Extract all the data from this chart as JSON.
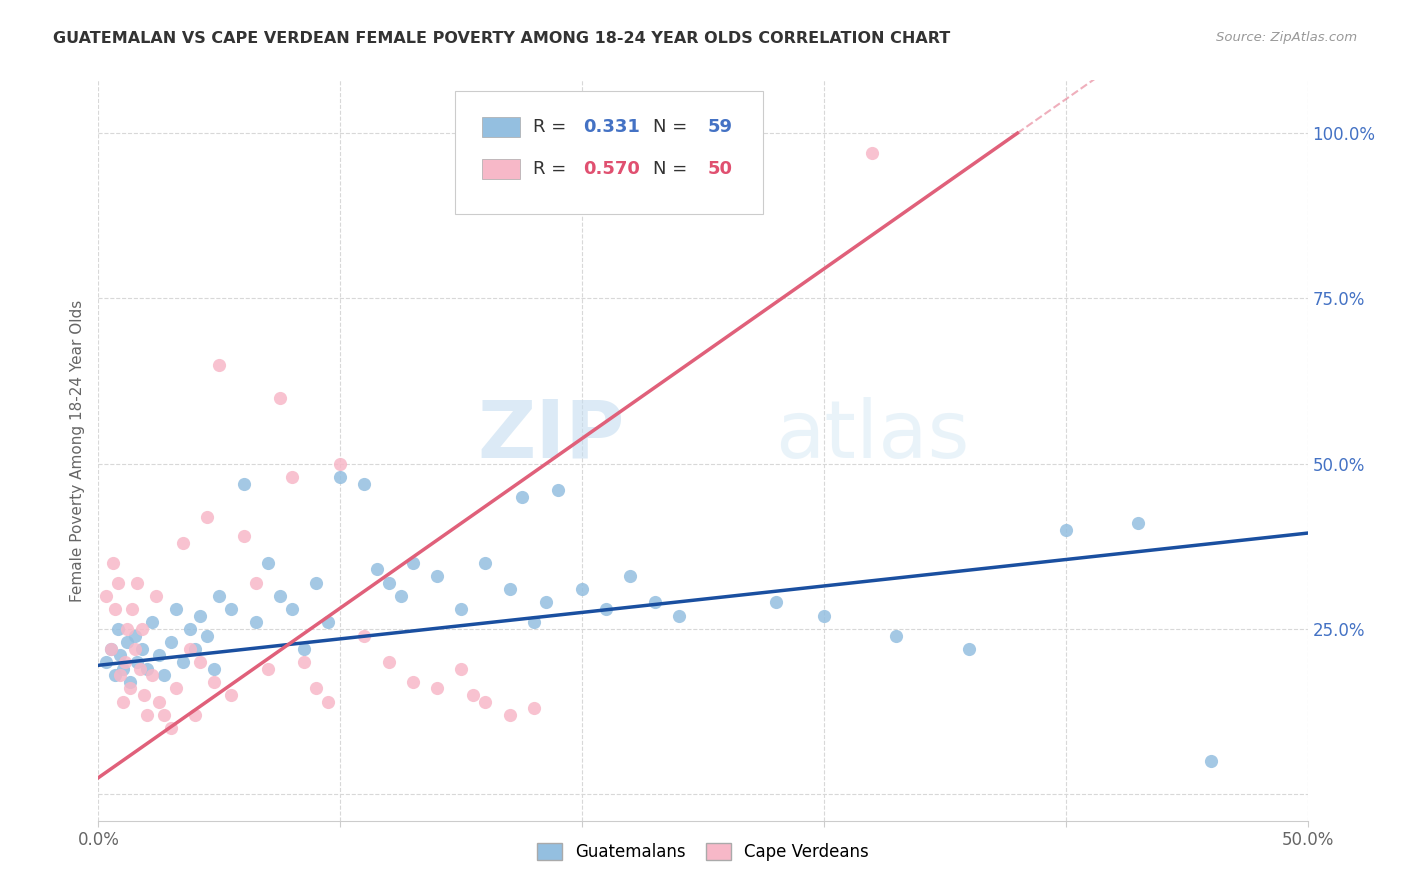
{
  "title": "GUATEMALAN VS CAPE VERDEAN FEMALE POVERTY AMONG 18-24 YEAR OLDS CORRELATION CHART",
  "source": "Source: ZipAtlas.com",
  "ylabel": "Female Poverty Among 18-24 Year Olds",
  "xlim": [
    0.0,
    0.5
  ],
  "ylim": [
    -0.04,
    1.08
  ],
  "xticks": [
    0.0,
    0.1,
    0.2,
    0.3,
    0.4,
    0.5
  ],
  "xticklabels": [
    "0.0%",
    "",
    "",
    "",
    "",
    "50.0%"
  ],
  "yticks_right": [
    0.0,
    0.25,
    0.5,
    0.75,
    1.0
  ],
  "yticklabels_right": [
    "",
    "25.0%",
    "50.0%",
    "75.0%",
    "100.0%"
  ],
  "guatemalan_color": "#94bfe0",
  "cape_verdean_color": "#f7b8c8",
  "guatemalan_line_color": "#1a4fa0",
  "cape_verdean_line_color": "#e0607a",
  "watermark_zip": "ZIP",
  "watermark_atlas": "atlas",
  "background_color": "#ffffff",
  "grid_color": "#d8d8d8",
  "guatemalan_x": [
    0.003,
    0.005,
    0.007,
    0.008,
    0.009,
    0.01,
    0.012,
    0.013,
    0.015,
    0.016,
    0.018,
    0.02,
    0.022,
    0.025,
    0.027,
    0.03,
    0.032,
    0.035,
    0.038,
    0.04,
    0.042,
    0.045,
    0.048,
    0.05,
    0.055,
    0.06,
    0.065,
    0.07,
    0.075,
    0.08,
    0.085,
    0.09,
    0.095,
    0.1,
    0.11,
    0.115,
    0.12,
    0.125,
    0.13,
    0.14,
    0.15,
    0.16,
    0.17,
    0.175,
    0.18,
    0.185,
    0.19,
    0.2,
    0.21,
    0.22,
    0.23,
    0.24,
    0.28,
    0.3,
    0.33,
    0.36,
    0.4,
    0.43,
    0.46
  ],
  "guatemalan_y": [
    0.2,
    0.22,
    0.18,
    0.25,
    0.21,
    0.19,
    0.23,
    0.17,
    0.24,
    0.2,
    0.22,
    0.19,
    0.26,
    0.21,
    0.18,
    0.23,
    0.28,
    0.2,
    0.25,
    0.22,
    0.27,
    0.24,
    0.19,
    0.3,
    0.28,
    0.47,
    0.26,
    0.35,
    0.3,
    0.28,
    0.22,
    0.32,
    0.26,
    0.48,
    0.47,
    0.34,
    0.32,
    0.3,
    0.35,
    0.33,
    0.28,
    0.35,
    0.31,
    0.45,
    0.26,
    0.29,
    0.46,
    0.31,
    0.28,
    0.33,
    0.29,
    0.27,
    0.29,
    0.27,
    0.24,
    0.22,
    0.4,
    0.41,
    0.05
  ],
  "cape_verdean_x": [
    0.003,
    0.005,
    0.006,
    0.007,
    0.008,
    0.009,
    0.01,
    0.011,
    0.012,
    0.013,
    0.014,
    0.015,
    0.016,
    0.017,
    0.018,
    0.019,
    0.02,
    0.022,
    0.024,
    0.025,
    0.027,
    0.03,
    0.032,
    0.035,
    0.038,
    0.04,
    0.042,
    0.045,
    0.048,
    0.05,
    0.055,
    0.06,
    0.065,
    0.07,
    0.075,
    0.08,
    0.085,
    0.09,
    0.095,
    0.1,
    0.11,
    0.12,
    0.13,
    0.14,
    0.15,
    0.155,
    0.16,
    0.17,
    0.18,
    0.32
  ],
  "cape_verdean_y": [
    0.3,
    0.22,
    0.35,
    0.28,
    0.32,
    0.18,
    0.14,
    0.2,
    0.25,
    0.16,
    0.28,
    0.22,
    0.32,
    0.19,
    0.25,
    0.15,
    0.12,
    0.18,
    0.3,
    0.14,
    0.12,
    0.1,
    0.16,
    0.38,
    0.22,
    0.12,
    0.2,
    0.42,
    0.17,
    0.65,
    0.15,
    0.39,
    0.32,
    0.19,
    0.6,
    0.48,
    0.2,
    0.16,
    0.14,
    0.5,
    0.24,
    0.2,
    0.17,
    0.16,
    0.19,
    0.15,
    0.14,
    0.12,
    0.13,
    0.97
  ],
  "guat_trend_x0": 0.0,
  "guat_trend_y0": 0.195,
  "guat_trend_x1": 0.5,
  "guat_trend_y1": 0.395,
  "cv_trend_x0": 0.0,
  "cv_trend_y0": 0.025,
  "cv_trend_x1": 0.38,
  "cv_trend_y1": 1.0
}
